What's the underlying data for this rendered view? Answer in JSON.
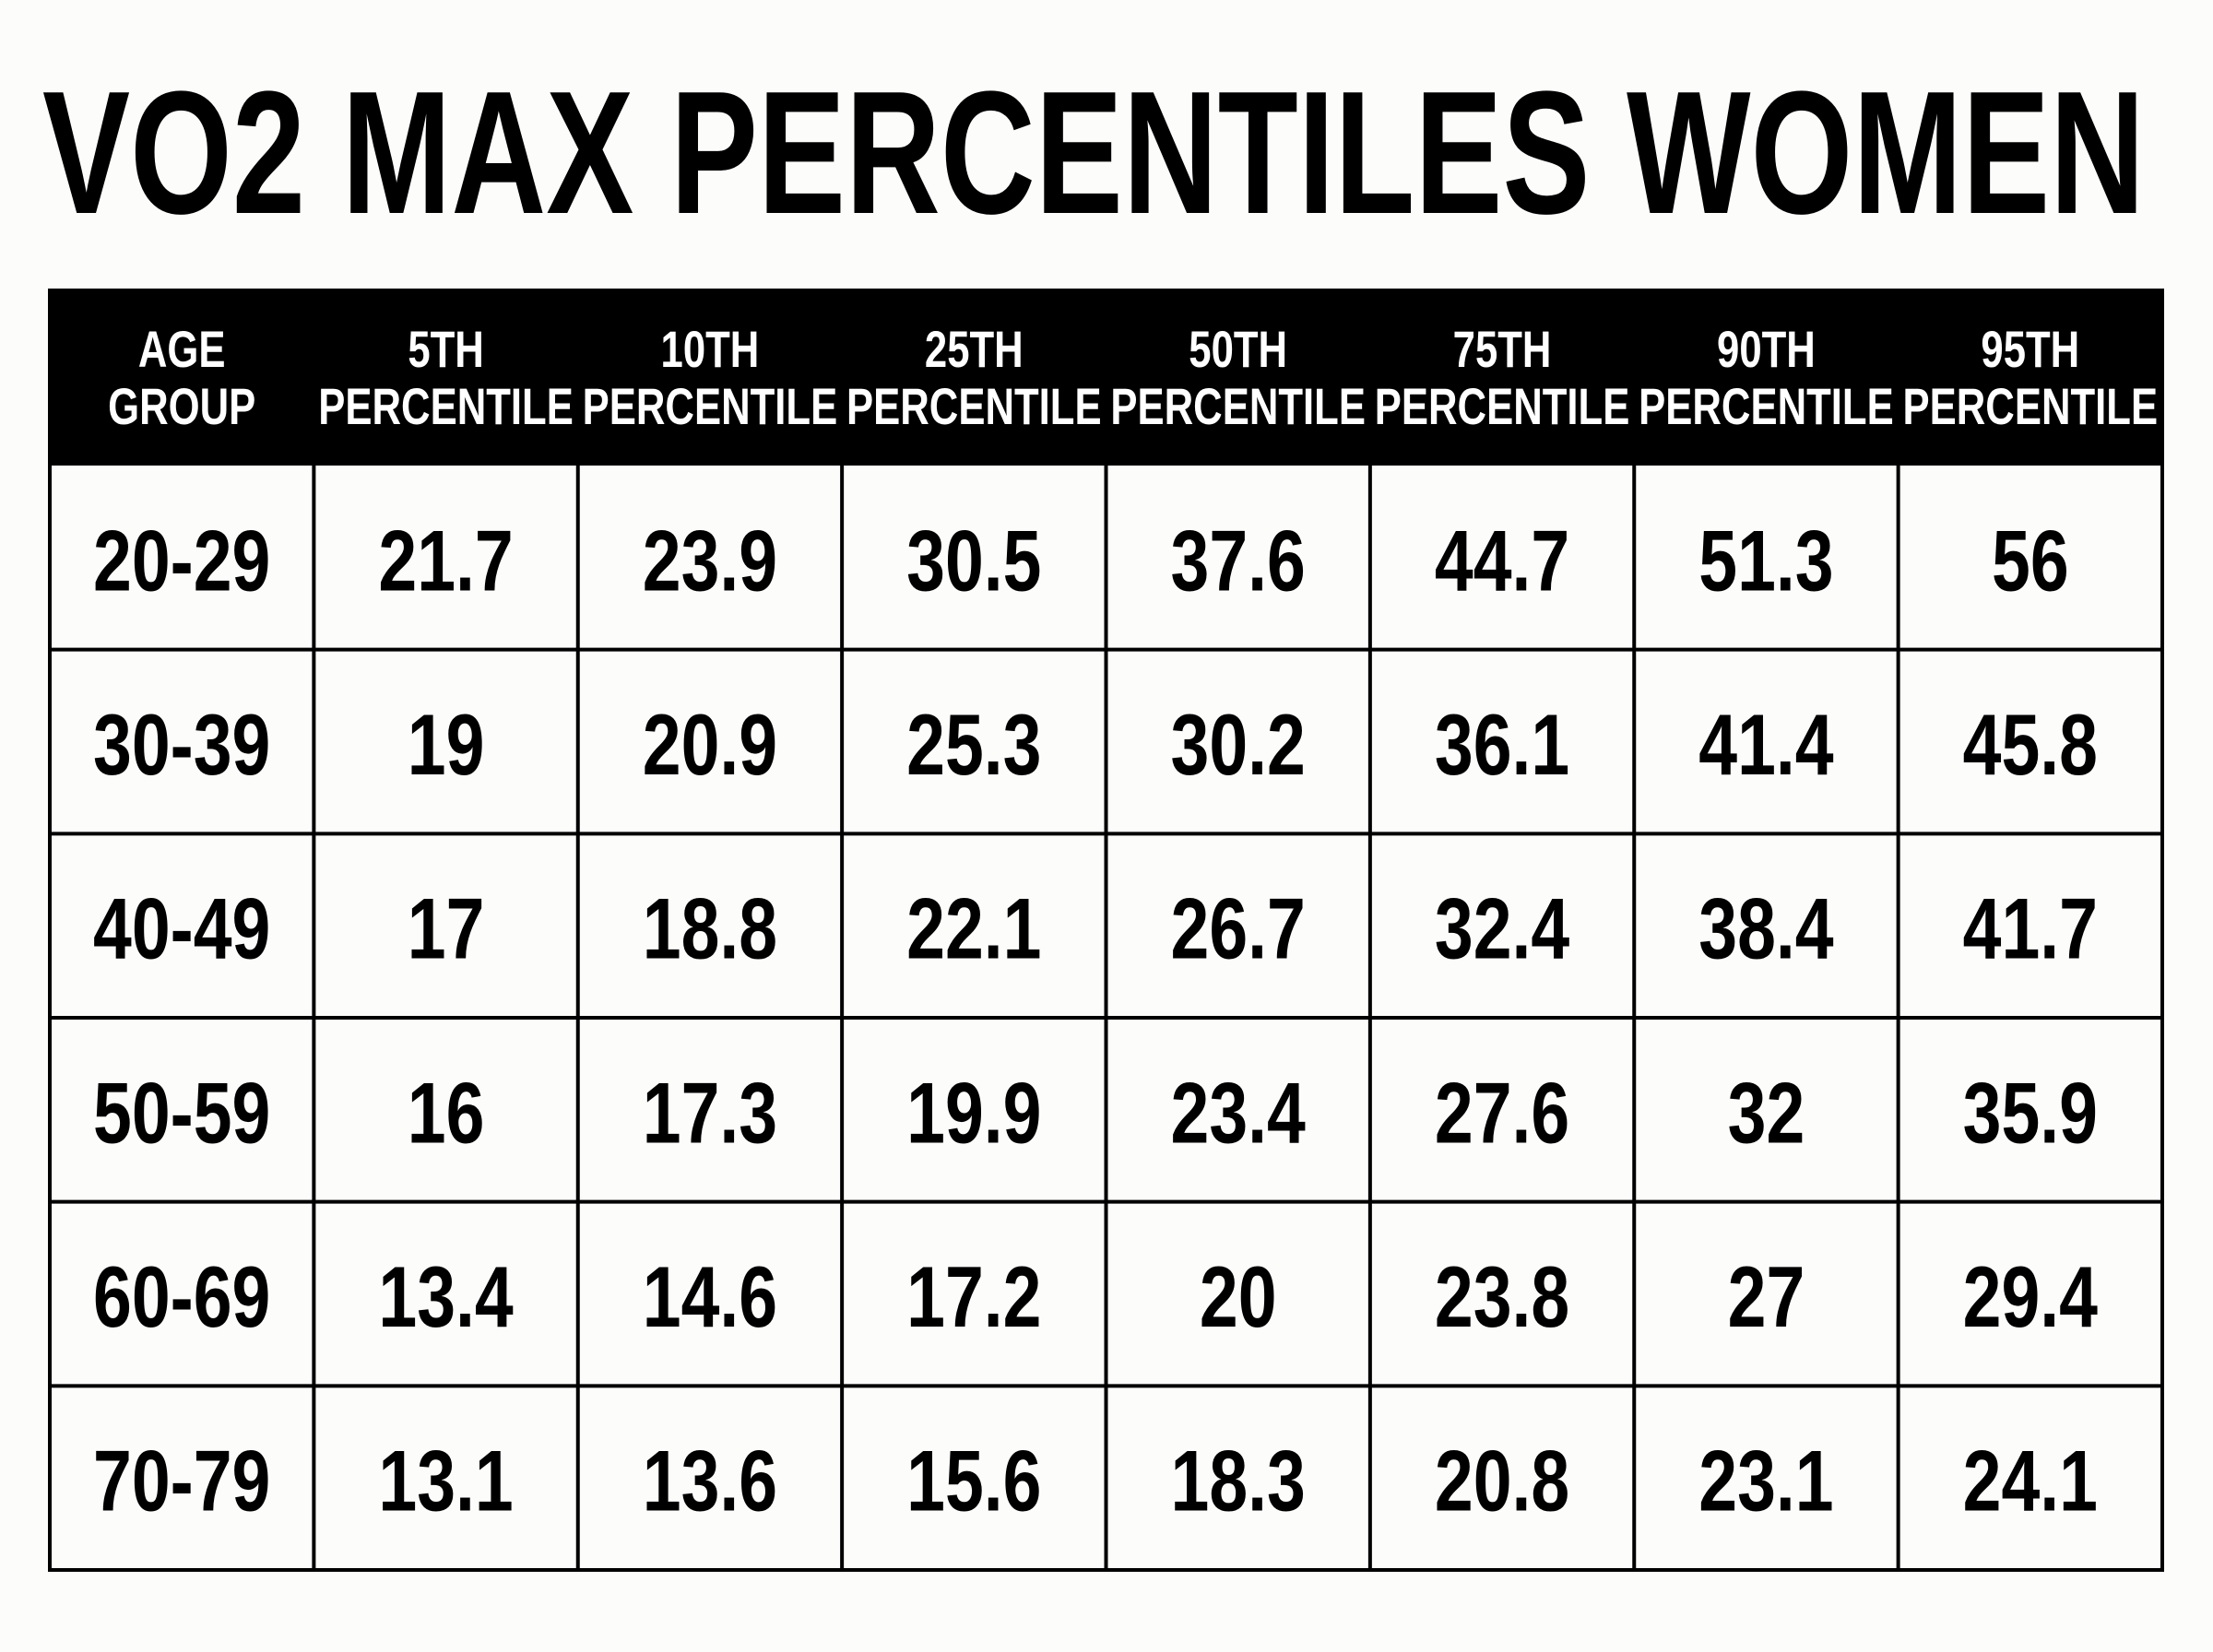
{
  "title": "VO2 MAX PERCENTILES WOMEN",
  "table": {
    "headers": [
      [
        "AGE",
        "GROUP"
      ],
      [
        "5TH",
        "PERCENTILE"
      ],
      [
        "10TH",
        "PERCENTILE"
      ],
      [
        "25TH",
        "PERCENTILE"
      ],
      [
        "50TH",
        "PERCENTILE"
      ],
      [
        "75TH",
        "PERCENTILE"
      ],
      [
        "90TH",
        "PERCENTILE"
      ],
      [
        "95TH",
        "PERCENTILE"
      ]
    ],
    "rows": [
      [
        "20-29",
        21.7,
        23.9,
        30.5,
        37.6,
        44.7,
        51.3,
        56
      ],
      [
        "30-39",
        19,
        20.9,
        25.3,
        30.2,
        36.1,
        41.4,
        45.8
      ],
      [
        "40-49",
        17,
        18.8,
        22.1,
        26.7,
        32.4,
        38.4,
        41.7
      ],
      [
        "50-59",
        16,
        17.3,
        19.9,
        23.4,
        27.6,
        32,
        35.9
      ],
      [
        "60-69",
        13.4,
        14.6,
        17.2,
        20,
        23.8,
        27,
        29.4
      ],
      [
        "70-79",
        13.1,
        13.6,
        15.6,
        18.3,
        20.8,
        23.1,
        24.1
      ]
    ]
  }
}
